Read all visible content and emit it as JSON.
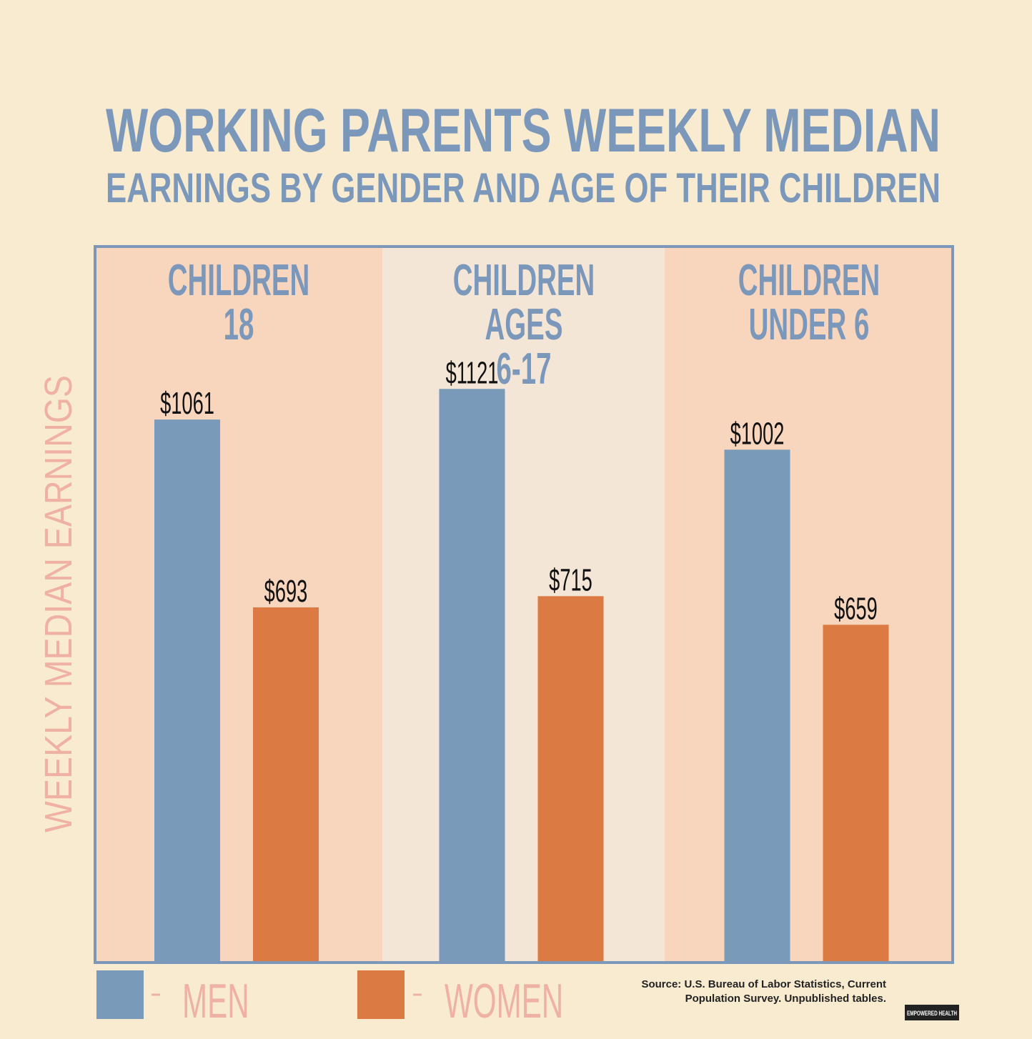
{
  "chart_data": {
    "type": "bar",
    "title": "WORKING PARENTS WEEKLY MEDIAN",
    "subtitle": "EARNINGS BY GENDER AND AGE OF THEIR CHILDREN",
    "y_label": "WEEKLY MEDIAN EARNINGS",
    "categories": [
      "CHILDREN\n18",
      "CHILDREN AGES\n6-17",
      "CHILDREN\nUNDER 6"
    ],
    "series": [
      {
        "name": "MEN",
        "color": "#7a9aba",
        "values": [
          1061,
          1121,
          1002
        ],
        "value_labels": [
          "$1061",
          "$1121",
          "$1002"
        ]
      },
      {
        "name": "WOMEN",
        "color": "#dc7a43",
        "values": [
          693,
          715,
          659
        ],
        "value_labels": [
          "$693",
          "$715",
          "$659"
        ]
      }
    ],
    "ylim": [
      0,
      1400
    ],
    "source": "Source: U.S. Bureau of Labor Statistics, Current Population Survey. Unpublished tables.",
    "logo": "EMPOWERED HEALTH"
  }
}
